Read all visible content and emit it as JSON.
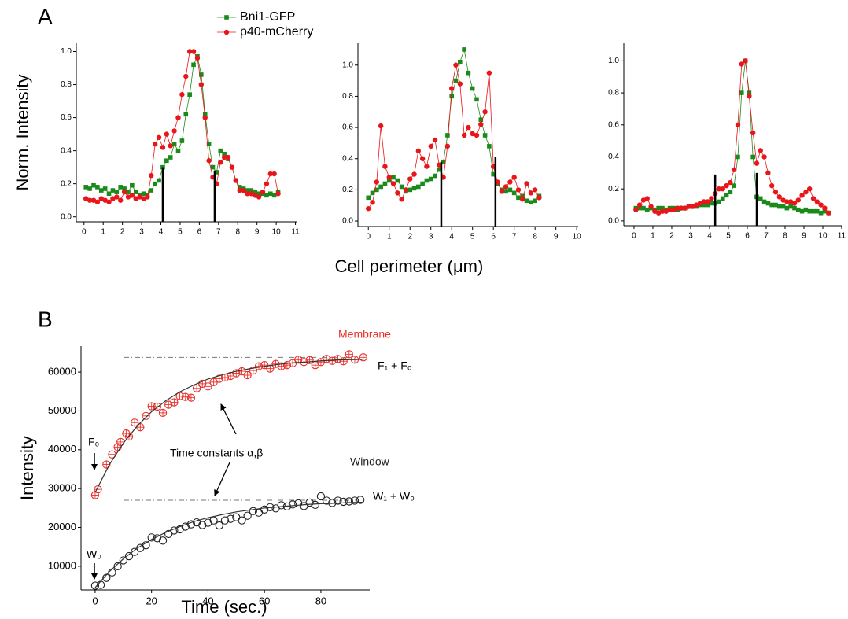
{
  "chart_data": [
    {
      "type": "line",
      "panel": "A",
      "ylabel": "Norm. Intensity",
      "legend": true,
      "xlim": [
        -0.4,
        11.1
      ],
      "ylim": [
        -0.03,
        1.05
      ],
      "xticks": [
        0,
        1,
        2,
        3,
        4,
        5,
        6,
        7,
        8,
        9,
        10,
        11
      ],
      "yticks": [
        {
          "value": 0,
          "label": "0.0"
        },
        0.2,
        0.4,
        0.6,
        0.8,
        {
          "value": 1,
          "label": "1.0"
        }
      ],
      "x": [
        0.1,
        0.3,
        0.5,
        0.7,
        0.9,
        1.1,
        1.3,
        1.5,
        1.7,
        1.9,
        2.1,
        2.3,
        2.5,
        2.7,
        2.9,
        3.1,
        3.3,
        3.5,
        3.7,
        3.9,
        4.1,
        4.3,
        4.5,
        4.7,
        4.9,
        5.1,
        5.3,
        5.5,
        5.7,
        5.9,
        6.1,
        6.3,
        6.5,
        6.7,
        6.9,
        7.1,
        7.3,
        7.5,
        7.7,
        7.9,
        8.1,
        8.3,
        8.5,
        8.7,
        8.9,
        9.1,
        9.3,
        9.5,
        9.7,
        9.9,
        10.1
      ],
      "series": [
        {
          "name": "Bni1-GFP",
          "color": "#1a8a1a",
          "marker": "square",
          "values": [
            0.18,
            0.17,
            0.19,
            0.18,
            0.16,
            0.17,
            0.14,
            0.16,
            0.15,
            0.18,
            0.17,
            0.15,
            0.19,
            0.15,
            0.13,
            0.14,
            0.13,
            0.16,
            0.2,
            0.22,
            0.3,
            0.34,
            0.36,
            0.44,
            0.4,
            0.46,
            0.62,
            0.74,
            0.92,
            0.97,
            0.86,
            0.62,
            0.44,
            0.3,
            0.27,
            0.4,
            0.38,
            0.35,
            0.3,
            0.22,
            0.18,
            0.17,
            0.16,
            0.16,
            0.15,
            0.14,
            0.14,
            0.13,
            0.14,
            0.13,
            0.15
          ]
        },
        {
          "name": "p40-mCherry",
          "color": "#e8161b",
          "marker": "circle",
          "values": [
            0.11,
            0.1,
            0.1,
            0.09,
            0.11,
            0.1,
            0.09,
            0.11,
            0.12,
            0.1,
            0.15,
            0.12,
            0.13,
            0.11,
            0.12,
            0.11,
            0.12,
            0.25,
            0.44,
            0.48,
            0.42,
            0.5,
            0.43,
            0.52,
            0.6,
            0.74,
            0.85,
            1,
            1,
            0.96,
            0.8,
            0.6,
            0.34,
            0.24,
            0.2,
            0.33,
            0.36,
            0.36,
            0.3,
            0.22,
            0.16,
            0.16,
            0.14,
            0.14,
            0.13,
            0.12,
            0.15,
            0.2,
            0.26,
            0.26,
            0.14
          ]
        }
      ],
      "markers": [
        {
          "x": 4.1,
          "y": 0.3
        },
        {
          "x": 6.8,
          "y": 0.28
        }
      ]
    },
    {
      "type": "line",
      "xlabel": "Cell perimeter (μm)",
      "xlim": [
        -0.5,
        10.07
      ],
      "ylim": [
        -0.035,
        1.14
      ],
      "xticks": [
        0,
        1,
        2,
        3,
        4,
        5,
        6,
        7,
        8,
        9,
        10
      ],
      "yticks": [
        {
          "value": 0,
          "label": "0.0"
        },
        0.2,
        0.4,
        0.6,
        0.8,
        {
          "value": 1,
          "label": "1.0"
        }
      ],
      "x": [
        0,
        0.2,
        0.4,
        0.6,
        0.8,
        1,
        1.2,
        1.4,
        1.6,
        1.8,
        2,
        2.2,
        2.4,
        2.6,
        2.8,
        3,
        3.2,
        3.4,
        3.6,
        3.8,
        4,
        4.2,
        4.4,
        4.6,
        4.8,
        5,
        5.2,
        5.4,
        5.6,
        5.8,
        6,
        6.2,
        6.4,
        6.6,
        6.8,
        7,
        7.2,
        7.4,
        7.6,
        7.8,
        8,
        8.2
      ],
      "series": [
        {
          "color": "#1a8a1a",
          "marker": "square",
          "values": [
            0.15,
            0.18,
            0.2,
            0.22,
            0.24,
            0.26,
            0.28,
            0.26,
            0.22,
            0.19,
            0.2,
            0.21,
            0.22,
            0.24,
            0.26,
            0.27,
            0.29,
            0.33,
            0.38,
            0.55,
            0.8,
            0.9,
            1.02,
            1.1,
            0.95,
            0.85,
            0.78,
            0.65,
            0.55,
            0.48,
            0.3,
            0.24,
            0.2,
            0.19,
            0.2,
            0.18,
            0.15,
            0.16,
            0.13,
            0.12,
            0.13,
            0.16
          ]
        },
        {
          "color": "#e8161b",
          "marker": "circle",
          "values": [
            0.08,
            0.12,
            0.25,
            0.61,
            0.35,
            0.28,
            0.24,
            0.18,
            0.14,
            0.2,
            0.27,
            0.3,
            0.45,
            0.4,
            0.35,
            0.48,
            0.52,
            0.36,
            0.28,
            0.48,
            0.85,
            1,
            0.88,
            0.55,
            0.6,
            0.56,
            0.55,
            0.62,
            0.7,
            0.95,
            0.35,
            0.25,
            0.19,
            0.22,
            0.25,
            0.28,
            0.2,
            0.14,
            0.24,
            0.18,
            0.2,
            0.15
          ]
        }
      ],
      "markers": [
        {
          "x": 3.5,
          "y": 0.38
        },
        {
          "x": 6.1,
          "y": 0.41
        }
      ]
    },
    {
      "type": "line",
      "xlim": [
        -0.54,
        11
      ],
      "ylim": [
        -0.03,
        1.11
      ],
      "xticks": [
        0,
        1,
        2,
        3,
        4,
        5,
        6,
        7,
        8,
        9,
        10,
        11
      ],
      "yticks": [
        {
          "value": 0,
          "label": "0.0"
        },
        0.2,
        0.4,
        0.6,
        0.8,
        {
          "value": 1,
          "label": "1.0"
        }
      ],
      "x": [
        0.1,
        0.3,
        0.5,
        0.7,
        0.9,
        1.1,
        1.3,
        1.5,
        1.7,
        1.9,
        2.1,
        2.3,
        2.5,
        2.7,
        2.9,
        3.1,
        3.3,
        3.5,
        3.7,
        3.9,
        4.1,
        4.3,
        4.5,
        4.7,
        4.9,
        5.1,
        5.3,
        5.5,
        5.7,
        5.9,
        6.1,
        6.3,
        6.5,
        6.7,
        6.9,
        7.1,
        7.3,
        7.5,
        7.7,
        7.9,
        8.1,
        8.3,
        8.5,
        8.7,
        8.9,
        9.1,
        9.3,
        9.5,
        9.7,
        9.9,
        10.1,
        10.3
      ],
      "series": [
        {
          "color": "#1a8a1a",
          "marker": "square",
          "values": [
            0.08,
            0.08,
            0.08,
            0.07,
            0.08,
            0.07,
            0.08,
            0.08,
            0.07,
            0.08,
            0.08,
            0.07,
            0.08,
            0.08,
            0.09,
            0.09,
            0.09,
            0.1,
            0.1,
            0.1,
            0.11,
            0.11,
            0.12,
            0.14,
            0.16,
            0.18,
            0.22,
            0.4,
            0.8,
            1,
            0.8,
            0.4,
            0.15,
            0.14,
            0.12,
            0.11,
            0.1,
            0.1,
            0.09,
            0.09,
            0.08,
            0.09,
            0.08,
            0.07,
            0.06,
            0.07,
            0.06,
            0.06,
            0.06,
            0.05,
            0.06,
            0.05
          ]
        },
        {
          "color": "#e8161b",
          "marker": "circle",
          "values": [
            0.07,
            0.1,
            0.13,
            0.14,
            0.09,
            0.06,
            0.05,
            0.06,
            0.06,
            0.07,
            0.07,
            0.08,
            0.08,
            0.08,
            0.09,
            0.09,
            0.1,
            0.11,
            0.12,
            0.12,
            0.14,
            0.17,
            0.2,
            0.2,
            0.22,
            0.24,
            0.32,
            0.6,
            0.98,
            1,
            0.78,
            0.55,
            0.36,
            0.44,
            0.4,
            0.3,
            0.22,
            0.18,
            0.15,
            0.13,
            0.12,
            0.12,
            0.11,
            0.13,
            0.16,
            0.18,
            0.2,
            0.14,
            0.12,
            0.1,
            0.08,
            0.05
          ]
        }
      ],
      "markers": [
        {
          "x": 4.3,
          "y": 0.29
        },
        {
          "x": 6.5,
          "y": 0.3
        }
      ]
    },
    {
      "type": "scatter",
      "panel": "B",
      "ylabel": "Intensity",
      "xlabel": "Time (sec.)",
      "xlim": [
        -5,
        97.3
      ],
      "ylim": [
        3900,
        66700
      ],
      "xticks": [
        0,
        20,
        40,
        60,
        80
      ],
      "yticks": [
        10000,
        20000,
        30000,
        40000,
        50000,
        60000
      ],
      "series": [
        {
          "name": "Membrane",
          "color": "#e8302a",
          "marker": "crossed-circle",
          "line": false,
          "x": [
            0,
            1,
            4,
            6,
            8,
            9,
            11,
            12,
            14,
            16,
            18,
            20,
            22,
            24,
            26,
            28,
            30,
            32,
            34,
            36,
            38,
            40,
            42,
            44,
            46,
            48,
            50,
            52,
            54,
            56,
            58,
            60,
            62,
            64,
            66,
            68,
            70,
            72,
            74,
            76,
            78,
            80,
            82,
            84,
            86,
            88,
            90,
            92,
            95
          ],
          "values": [
            28300,
            29800,
            36200,
            38800,
            40700,
            42000,
            44200,
            43400,
            47000,
            45800,
            48700,
            51200,
            51100,
            49500,
            51600,
            52200,
            53800,
            53600,
            53400,
            55800,
            57000,
            56300,
            57400,
            58300,
            58600,
            59000,
            59700,
            60200,
            59200,
            60400,
            61500,
            61800,
            60900,
            62100,
            61500,
            61800,
            62300,
            63200,
            62600,
            63100,
            61800,
            62600,
            63400,
            62900,
            63400,
            62800,
            64600,
            63200,
            63800
          ]
        },
        {
          "name": "Window",
          "color": "#222222",
          "marker": "open-circle",
          "line": false,
          "x": [
            0,
            2,
            4,
            6,
            8,
            10,
            12,
            14,
            16,
            18,
            20,
            22,
            24,
            26,
            28,
            30,
            32,
            34,
            36,
            38,
            40,
            42,
            44,
            46,
            48,
            50,
            52,
            54,
            56,
            58,
            60,
            62,
            64,
            66,
            68,
            70,
            72,
            74,
            76,
            78,
            80,
            82,
            84,
            86,
            88,
            90,
            92,
            94
          ],
          "values": [
            5000,
            5200,
            7000,
            8400,
            10000,
            11500,
            12600,
            13700,
            14700,
            15400,
            17400,
            17200,
            16600,
            18300,
            19200,
            19500,
            20200,
            20800,
            21300,
            20600,
            21200,
            21800,
            20500,
            21800,
            22200,
            22600,
            21800,
            23000,
            24200,
            23800,
            24600,
            25200,
            24900,
            25700,
            25400,
            25900,
            26200,
            25500,
            26400,
            25800,
            28000,
            26900,
            26300,
            26900,
            26600,
            26700,
            26900,
            27100
          ]
        },
        {
          "color": "#333333",
          "x": [
            0,
            5,
            10,
            15,
            20,
            25,
            30,
            35,
            40,
            45,
            50,
            55,
            60,
            65,
            70,
            75,
            80,
            85,
            90,
            95
          ],
          "values": [
            29000,
            36100,
            41700,
            46200,
            49800,
            52600,
            54900,
            56700,
            58200,
            59300,
            60200,
            60900,
            61500,
            62000,
            62400,
            62600,
            62900,
            63100,
            63200,
            63300
          ]
        },
        {
          "color": "#333333",
          "x": [
            0,
            5,
            10,
            15,
            20,
            25,
            30,
            35,
            40,
            45,
            50,
            55,
            60,
            65,
            70,
            75,
            80,
            85,
            90,
            95
          ],
          "values": [
            4500,
            8600,
            11900,
            14700,
            16900,
            18700,
            20200,
            21500,
            22500,
            23300,
            24000,
            24500,
            25000,
            25300,
            25600,
            25900,
            26100,
            26200,
            26400,
            26500
          ]
        }
      ],
      "hlines": [
        63800,
        27000
      ],
      "annotations": [
        "F₁ + F₀",
        "F₀",
        "Time constants α,β",
        "W₁ + W₀",
        "W₀"
      ]
    }
  ]
}
